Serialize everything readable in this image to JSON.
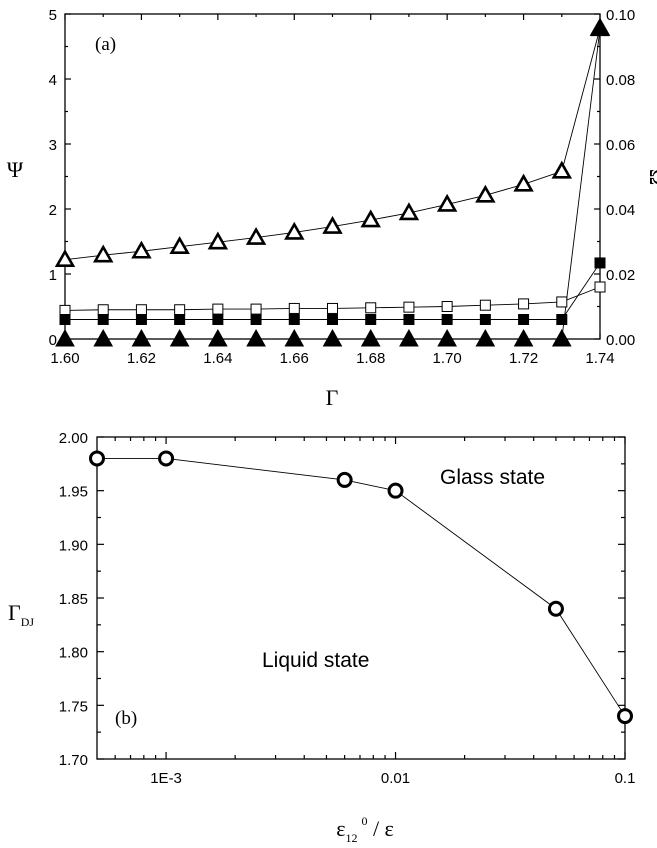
{
  "chart_data": [
    {
      "type": "line",
      "panel_label": "(a)",
      "xlabel": "Γ",
      "ylabel": "Ψ",
      "ylabel_right": "Ω",
      "xlim": [
        1.6,
        1.74
      ],
      "ylim": [
        0,
        5
      ],
      "ylim_right": [
        0,
        0.1
      ],
      "xticks": [
        "1.60",
        "1.62",
        "1.64",
        "1.66",
        "1.68",
        "1.70",
        "1.72",
        "1.74"
      ],
      "yticks": [
        "0",
        "1",
        "2",
        "3",
        "4",
        "5"
      ],
      "yticks_right": [
        "0.00",
        "0.02",
        "0.04",
        "0.06",
        "0.08",
        "0.10"
      ],
      "x": [
        1.6,
        1.61,
        1.62,
        1.63,
        1.64,
        1.65,
        1.66,
        1.67,
        1.68,
        1.69,
        1.7,
        1.71,
        1.72,
        1.73,
        1.74
      ],
      "series": [
        {
          "marker": "triangle-open",
          "axis": "left",
          "values": [
            1.22,
            1.29,
            1.35,
            1.42,
            1.49,
            1.56,
            1.64,
            1.73,
            1.83,
            1.94,
            2.07,
            2.21,
            2.38,
            2.58,
            4.78
          ]
        },
        {
          "marker": "square-open",
          "axis": "left",
          "values": [
            0.44,
            0.45,
            0.45,
            0.45,
            0.46,
            0.46,
            0.47,
            0.47,
            0.48,
            0.49,
            0.5,
            0.52,
            0.54,
            0.57,
            0.8
          ]
        },
        {
          "marker": "square-filled",
          "axis": "left",
          "values": [
            0.3,
            0.3,
            0.3,
            0.3,
            0.3,
            0.3,
            0.3,
            0.3,
            0.3,
            0.3,
            0.3,
            0.3,
            0.3,
            0.3,
            1.17
          ]
        },
        {
          "marker": "triangle-filled",
          "axis": "right",
          "values": [
            0,
            0,
            0,
            0,
            0,
            0,
            0,
            0,
            0,
            0,
            0,
            0,
            0,
            0,
            0.0955
          ]
        }
      ]
    },
    {
      "type": "line",
      "panel_label": "(b)",
      "xlabel_main": "ε",
      "xlabel_sub": "12",
      "xlabel_sup": "0",
      "xlabel_tail": " / ε",
      "ylabel_main": "Γ",
      "ylabel_sub": "DJ",
      "xscale": "log",
      "xlim": [
        0.0005,
        0.1
      ],
      "ylim": [
        1.7,
        2.0
      ],
      "xticks": [
        {
          "value": 0.001,
          "label": "1E-3"
        },
        {
          "value": 0.01,
          "label": "0.01"
        },
        {
          "value": 0.1,
          "label": "0.1"
        }
      ],
      "yticks": [
        "1.70",
        "1.75",
        "1.80",
        "1.85",
        "1.90",
        "1.95",
        "2.00"
      ],
      "marker": "circle-open",
      "x": [
        0.0005,
        0.001,
        0.006,
        0.01,
        0.05,
        0.1
      ],
      "values": [
        1.98,
        1.98,
        1.96,
        1.95,
        1.84,
        1.74
      ],
      "annotations": [
        "Glass state",
        "Liquid state"
      ]
    }
  ]
}
